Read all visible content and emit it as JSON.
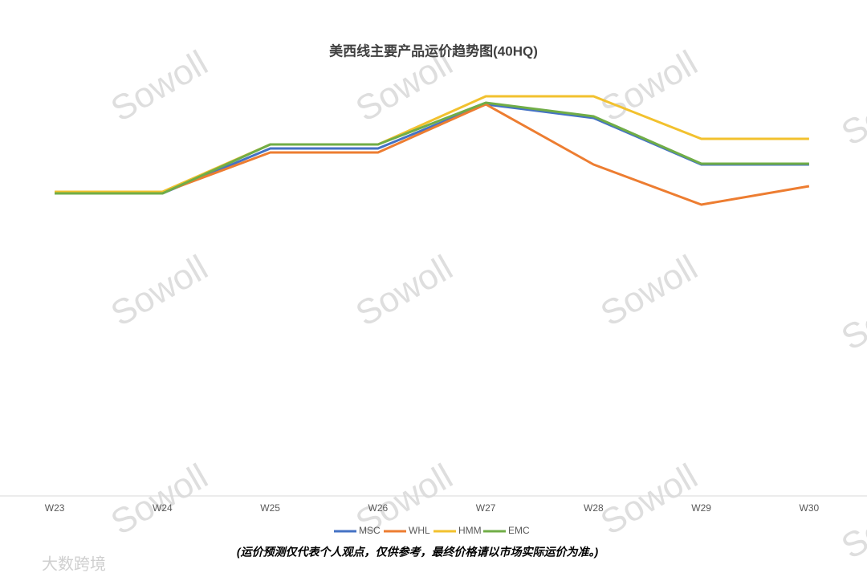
{
  "chart_data": {
    "type": "line",
    "title": "美西线主要产品运价趋势图(40HQ)",
    "categories": [
      "W23",
      "W24",
      "W25",
      "W26",
      "W27",
      "W28",
      "W29",
      "W30"
    ],
    "series": [
      {
        "name": "MSC",
        "color": "#4472c4",
        "values": [
          377,
          377,
          433,
          433,
          488,
          471,
          413,
          413
        ]
      },
      {
        "name": "WHL",
        "color": "#ed7d31",
        "values": [
          378,
          378,
          428,
          428,
          488,
          413,
          363,
          386
        ]
      },
      {
        "name": "HMM",
        "color": "#f2c12e",
        "values": [
          379,
          379,
          438,
          438,
          498,
          498,
          445,
          445
        ]
      },
      {
        "name": "EMC",
        "color": "#70ad47",
        "values": [
          377,
          377,
          438,
          438,
          490,
          473,
          414,
          414
        ]
      }
    ],
    "ylim": [
      0,
      578
    ],
    "grid": false,
    "legend": "bottom",
    "note": "(运价预测仅代表个人观点，仅供参考，最终价格请以市场实际运价为准。)",
    "watermark": "Sowoll",
    "logo": "大数跨境"
  }
}
